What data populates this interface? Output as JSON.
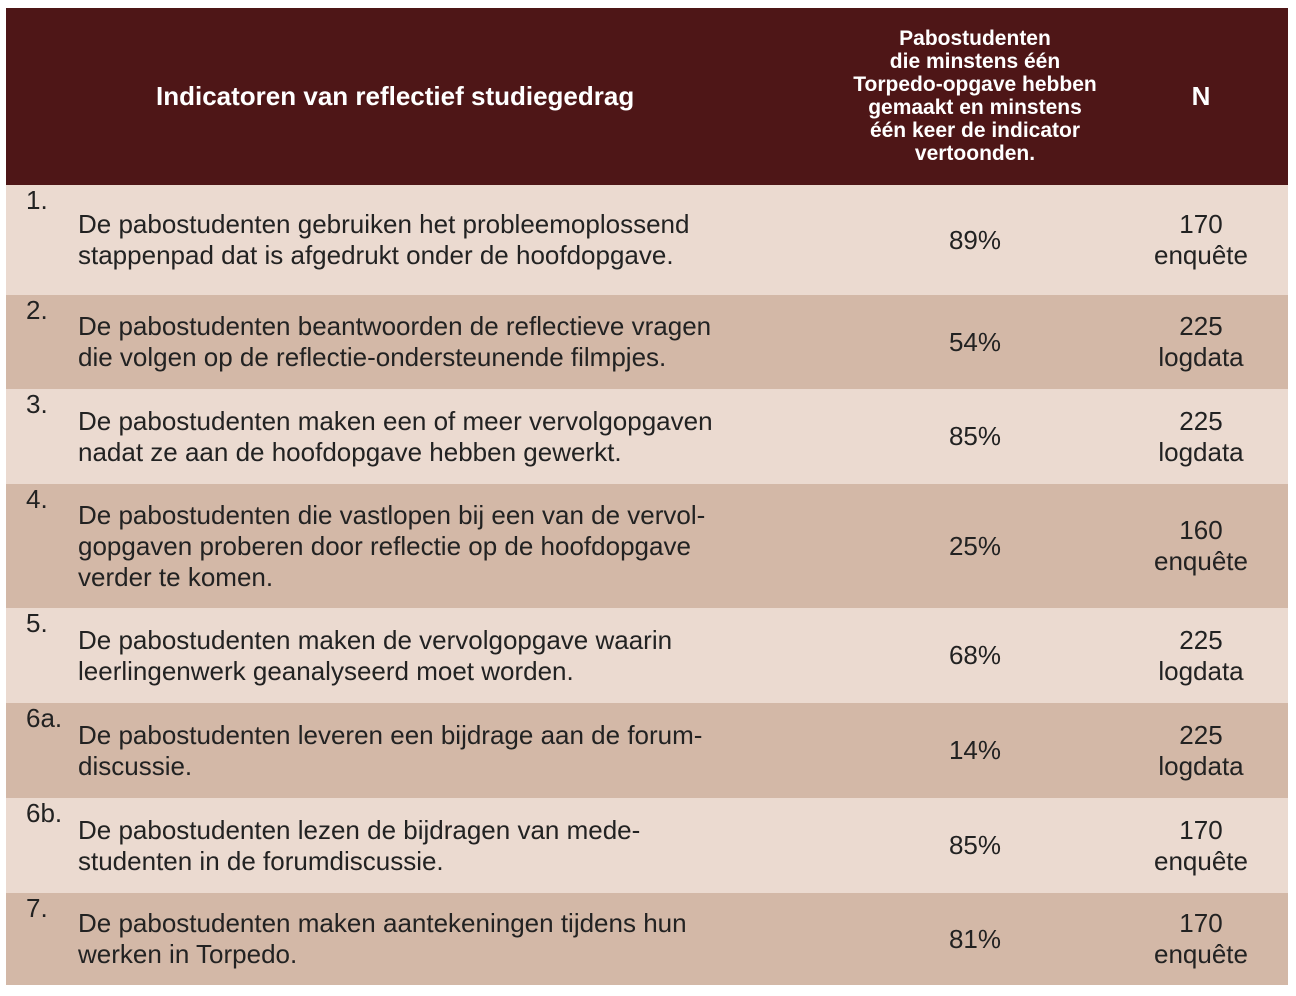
{
  "header": {
    "indicator": "Indicatoren van reflectief studiegedrag",
    "percentage": "Pabostudenten\ndie minstens één\nTorpedo-opgave hebben\ngemaakt en minstens\néén keer de indicator\nvertoonden.",
    "n": "N"
  },
  "rows": [
    {
      "num": "1.",
      "text": "De pabostudenten gebruiken het probleemoplossend\nstappenpad dat is afgedrukt onder de hoofdopgave.",
      "pct": "89%",
      "n": "170",
      "source": "enquête"
    },
    {
      "num": "2.",
      "text": "De pabostudenten beantwoorden de reflectieve vragen\ndie volgen op de reflectie-ondersteunende filmpjes.",
      "pct": "54%",
      "n": "225",
      "source": "logdata"
    },
    {
      "num": "3.",
      "text": "De pabostudenten maken een of meer vervolgopgaven\nnadat ze aan de hoofdopgave hebben gewerkt.",
      "pct": "85%",
      "n": "225",
      "source": "logdata"
    },
    {
      "num": "4.",
      "text": "De pabostudenten die vastlopen bij een van de vervol-\ngopgaven proberen door reflectie op de hoofdopgave\nverder te komen.",
      "pct": "25%",
      "n": "160",
      "source": "enquête"
    },
    {
      "num": "5.",
      "text": "De pabostudenten maken de vervolgopgave waarin\nleerlingenwerk geanalyseerd moet worden.",
      "pct": "68%",
      "n": "225",
      "source": "logdata"
    },
    {
      "num": "6a.",
      "text": "De pabostudenten leveren een bijdrage aan de forum-\ndiscussie.",
      "pct": "14%",
      "n": "225",
      "source": "logdata"
    },
    {
      "num": "6b.",
      "text": "De pabostudenten lezen de bijdragen van mede-\nstudenten in de forumdiscussie.",
      "pct": "85%",
      "n": "170",
      "source": "enquête"
    },
    {
      "num": "7.",
      "text": "De pabostudenten maken aantekeningen tijdens hun\nwerken in Torpedo.",
      "pct": "81%",
      "n": "170",
      "source": "enquête"
    }
  ],
  "colors": {
    "header_bg": "#4e1617",
    "row_light": "#ebdad0",
    "row_dark": "#d3b8a7"
  }
}
